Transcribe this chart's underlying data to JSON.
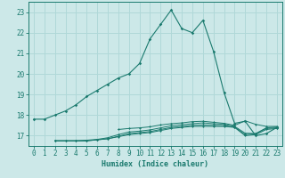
{
  "xlabel": "Humidex (Indice chaleur)",
  "background_color": "#cce8e8",
  "grid_color": "#b0d8d8",
  "line_color": "#1a7a6e",
  "xlim": [
    -0.5,
    23.5
  ],
  "ylim": [
    16.5,
    23.5
  ],
  "yticks": [
    17,
    18,
    19,
    20,
    21,
    22,
    23
  ],
  "xticks": [
    0,
    1,
    2,
    3,
    4,
    5,
    6,
    7,
    8,
    9,
    10,
    11,
    12,
    13,
    14,
    15,
    16,
    17,
    18,
    19,
    20,
    21,
    22,
    23
  ],
  "main_line": {
    "x": [
      0,
      1,
      2,
      3,
      4,
      5,
      6,
      7,
      8,
      9,
      10,
      11,
      12,
      13,
      14,
      15,
      16,
      17,
      18,
      19,
      20,
      21,
      22,
      23
    ],
    "y": [
      17.8,
      17.8,
      18.0,
      18.2,
      18.5,
      18.9,
      19.2,
      19.5,
      19.8,
      20.0,
      20.5,
      21.7,
      22.4,
      23.1,
      22.2,
      22.0,
      22.6,
      21.1,
      19.1,
      17.6,
      17.7,
      17.0,
      17.1,
      17.4
    ]
  },
  "flat_lines": [
    {
      "x": [
        2,
        3,
        4,
        5,
        6,
        7,
        8,
        9,
        10,
        11,
        12,
        13,
        14,
        15,
        16,
        17,
        18,
        19,
        20,
        21,
        22,
        23
      ],
      "y": [
        16.75,
        16.75,
        16.75,
        16.75,
        16.8,
        16.85,
        16.95,
        17.05,
        17.1,
        17.15,
        17.25,
        17.35,
        17.4,
        17.45,
        17.45,
        17.45,
        17.45,
        17.4,
        17.0,
        17.05,
        17.3,
        17.35
      ]
    },
    {
      "x": [
        2,
        3,
        4,
        5,
        6,
        7,
        8,
        9,
        10,
        11,
        12,
        13,
        14,
        15,
        16,
        17,
        18,
        19,
        20,
        21,
        22,
        23
      ],
      "y": [
        16.75,
        16.75,
        16.75,
        16.75,
        16.8,
        16.85,
        16.97,
        17.1,
        17.15,
        17.2,
        17.3,
        17.4,
        17.45,
        17.5,
        17.52,
        17.5,
        17.48,
        17.42,
        17.05,
        17.1,
        17.35,
        17.38
      ]
    },
    {
      "x": [
        2,
        3,
        4,
        5,
        6,
        7,
        8,
        9,
        10,
        11,
        12,
        13,
        14,
        15,
        16,
        17,
        18,
        19,
        20,
        21,
        22,
        23
      ],
      "y": [
        16.75,
        16.75,
        16.75,
        16.78,
        16.82,
        16.9,
        17.05,
        17.18,
        17.22,
        17.28,
        17.38,
        17.48,
        17.53,
        17.58,
        17.62,
        17.58,
        17.55,
        17.45,
        17.12,
        17.1,
        17.38,
        17.42
      ]
    },
    {
      "x": [
        8,
        9,
        10,
        11,
        12,
        13,
        14,
        15,
        16,
        17,
        18,
        19,
        20,
        21,
        22,
        23
      ],
      "y": [
        17.3,
        17.35,
        17.38,
        17.43,
        17.52,
        17.58,
        17.62,
        17.68,
        17.7,
        17.65,
        17.6,
        17.5,
        17.72,
        17.55,
        17.45,
        17.45
      ]
    }
  ]
}
